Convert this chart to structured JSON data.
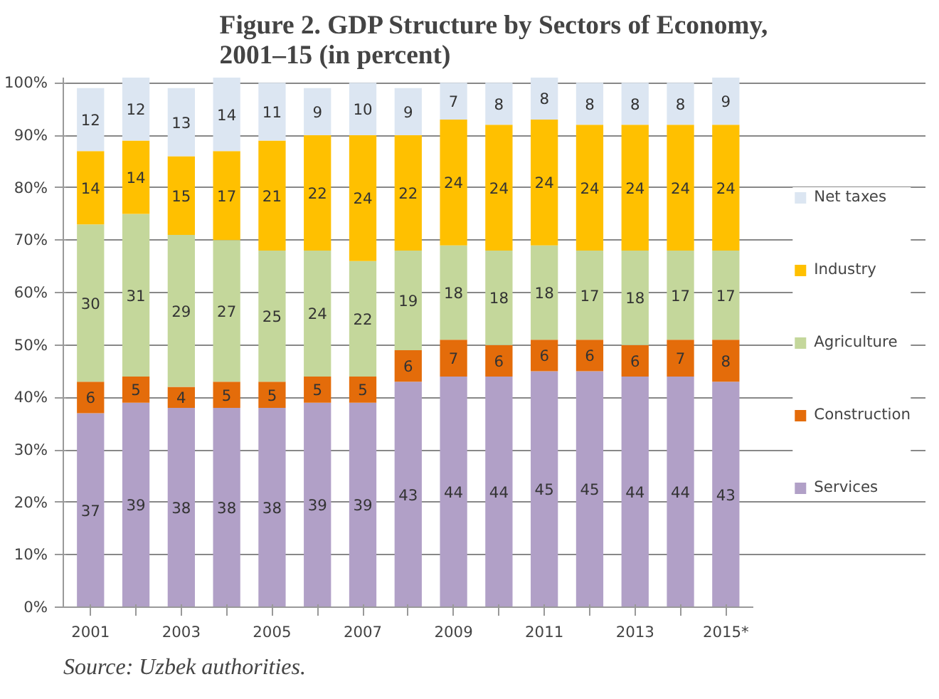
{
  "chart_data": {
    "type": "bar",
    "stacked": true,
    "title": "Figure 2. GDP Structure by Sectors of Economy, 2001–15 (in percent)",
    "categories": [
      "2001",
      null,
      "2003",
      null,
      "2005",
      null,
      "2007",
      null,
      "2009",
      null,
      "2011",
      null,
      "2013",
      null,
      "2015*"
    ],
    "series": [
      {
        "name": "Services",
        "color": "#b1a0c7",
        "values": [
          37,
          39,
          38,
          38,
          38,
          39,
          39,
          43,
          44,
          44,
          45,
          45,
          44,
          44,
          43
        ]
      },
      {
        "name": "Construction",
        "color": "#e46c0a",
        "values": [
          6,
          5,
          4,
          5,
          5,
          5,
          5,
          6,
          7,
          6,
          6,
          6,
          6,
          7,
          8
        ]
      },
      {
        "name": "Agriculture",
        "color": "#c4d79b",
        "values": [
          30,
          31,
          29,
          27,
          25,
          24,
          22,
          19,
          18,
          18,
          18,
          17,
          18,
          17,
          17
        ]
      },
      {
        "name": "Industry",
        "color": "#ffc000",
        "values": [
          14,
          14,
          15,
          17,
          21,
          22,
          24,
          22,
          24,
          24,
          24,
          24,
          24,
          24,
          24
        ]
      },
      {
        "name": "Net taxes",
        "color": "#dce6f2",
        "values": [
          12,
          12,
          13,
          14,
          11,
          9,
          10,
          9,
          7,
          8,
          8,
          8,
          8,
          8,
          9
        ]
      }
    ],
    "ylim": [
      0,
      101
    ],
    "yticks": [
      {
        "value": 0,
        "label": "0%"
      },
      {
        "value": 10,
        "label": "10%"
      },
      {
        "value": 20,
        "label": "20%"
      },
      {
        "value": 30,
        "label": "30%"
      },
      {
        "value": 40,
        "label": "40%"
      },
      {
        "value": 50,
        "label": "50%"
      },
      {
        "value": 60,
        "label": "60%"
      },
      {
        "value": 70,
        "label": "70%"
      },
      {
        "value": 80,
        "label": "80%"
      },
      {
        "value": 90,
        "label": "90%"
      },
      {
        "value": 100,
        "label": "100%"
      }
    ],
    "grid": "y",
    "legend": "right",
    "data_labels": true,
    "annotations": [
      "Source: Uzbek authorities."
    ]
  }
}
